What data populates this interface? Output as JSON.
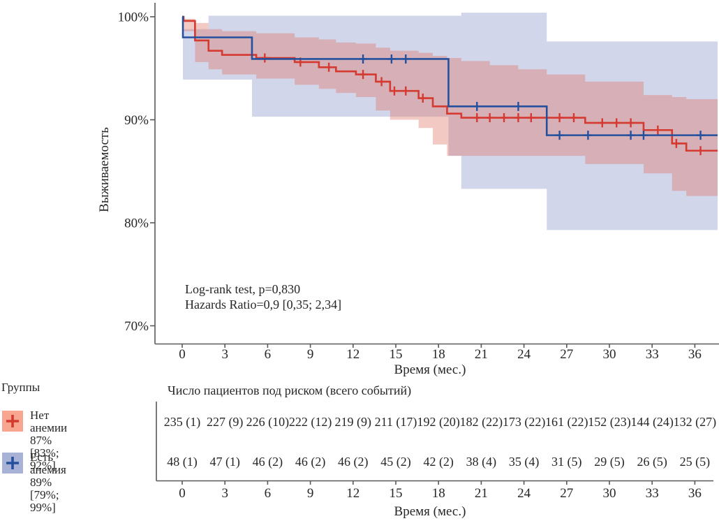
{
  "chart_data": {
    "type": "line",
    "subtype": "kaplan-meier-survival",
    "ylabel": "Выживаемость",
    "xlabel": "Время (мес.)",
    "x_ticks": [
      0,
      3,
      6,
      9,
      12,
      15,
      18,
      21,
      24,
      27,
      30,
      33,
      36
    ],
    "y_ticks": [
      {
        "value": 100,
        "label": "100%"
      },
      {
        "value": 90,
        "label": "90%"
      },
      {
        "value": 80,
        "label": "80%"
      },
      {
        "value": 70,
        "label": "70%"
      }
    ],
    "xlim": [
      0,
      37.6
    ],
    "ylim": [
      68,
      101
    ],
    "grid": false,
    "annotation_lines": [
      "Log-rank test, p=0,830",
      "Hazards Ratio=0,9 [0,35; 2,34]"
    ],
    "legend": {
      "title": "Группы",
      "position": "bottom-left"
    },
    "series": [
      {
        "name": "Нет анемии",
        "estimate_label": "87% [83%; 92%]",
        "line_color": "#d43a30",
        "band_fill": "rgba(224,112,98,0.38)",
        "swatch_color": "#f8a68f",
        "steps": [
          [
            0,
            100
          ],
          [
            0.1,
            99.6
          ],
          [
            0.9,
            97.7
          ],
          [
            1.85,
            96.7
          ],
          [
            2.8,
            96.3
          ],
          [
            5.2,
            96.0
          ],
          [
            7.9,
            95.6
          ],
          [
            9.6,
            95.1
          ],
          [
            10.8,
            94.7
          ],
          [
            12.2,
            94.4
          ],
          [
            13.6,
            93.7
          ],
          [
            14.6,
            92.8
          ],
          [
            16.6,
            92.1
          ],
          [
            17.6,
            91.3
          ],
          [
            18.6,
            90.6
          ],
          [
            19.6,
            90.2
          ],
          [
            28.3,
            89.7
          ],
          [
            32.4,
            89.0
          ],
          [
            34.4,
            87.7
          ],
          [
            35.4,
            87.0
          ]
        ],
        "censor_times": [
          5.8,
          8.3,
          10.3,
          12.7,
          14.0,
          14.9,
          15.7,
          16.9,
          20.7,
          21.6,
          22.6,
          23.6,
          24.5,
          26.5,
          27.5,
          29.5,
          30.5,
          31.5,
          33.4,
          34.7,
          36.4
        ],
        "band": [
          [
            0.1,
            99.8,
            98.6
          ],
          [
            0.9,
            99.4,
            95.6
          ],
          [
            1.85,
            98.8,
            94.9
          ],
          [
            2.8,
            98.6,
            94.4
          ],
          [
            5.2,
            98.4,
            94.0
          ],
          [
            7.9,
            98.0,
            93.4
          ],
          [
            9.6,
            97.8,
            93.0
          ],
          [
            10.8,
            97.5,
            92.6
          ],
          [
            12.2,
            97.4,
            92.2
          ],
          [
            13.6,
            97.0,
            90.9
          ],
          [
            14.6,
            96.7,
            90.0
          ],
          [
            16.6,
            96.5,
            89.2
          ],
          [
            17.6,
            96.2,
            87.6
          ],
          [
            18.6,
            96.0,
            86.5
          ],
          [
            19.6,
            95.7,
            86.5
          ],
          [
            21.6,
            95.3,
            86.5
          ],
          [
            23.6,
            94.9,
            86.5
          ],
          [
            25.6,
            94.4,
            86.5
          ],
          [
            28.3,
            93.7,
            85.7
          ],
          [
            32.4,
            92.4,
            84.8
          ],
          [
            34.4,
            92.2,
            83.1
          ],
          [
            35.4,
            92.0,
            82.6
          ]
        ]
      },
      {
        "name": "Есть анемия",
        "estimate_label": "89% [79%; 99%]",
        "line_color": "#24509e",
        "band_fill": "#d2d6eb",
        "swatch_color": "#a8b2d6",
        "steps": [
          [
            0,
            100
          ],
          [
            0.05,
            98.0
          ],
          [
            4.9,
            95.9
          ],
          [
            18.7,
            91.3
          ],
          [
            25.6,
            88.5
          ]
        ],
        "censor_times": [
          12.7,
          14.7,
          15.7,
          20.7,
          23.6,
          26.5,
          28.5,
          31.5,
          32.4,
          36.4
        ],
        "band": [
          [
            0.05,
            98.8,
            93.9
          ],
          [
            1.85,
            100.1,
            93.9
          ],
          [
            4.9,
            100.1,
            90.3
          ],
          [
            18.7,
            100.1,
            86.5
          ],
          [
            19.6,
            100.4,
            83.3
          ],
          [
            25.6,
            97.6,
            79.3
          ]
        ]
      }
    ],
    "risk_table": {
      "title": "Число пациентов под риском (всего событий)",
      "xlabel": "Время (мес.)",
      "x_ticks": [
        0,
        3,
        6,
        9,
        12,
        15,
        18,
        21,
        24,
        27,
        30,
        33,
        36
      ],
      "rows": [
        {
          "group": "Нет анемии",
          "values": [
            "235 (1)",
            "227 (9)",
            "226 (10)",
            "222 (12)",
            "219 (9)",
            "211 (17)",
            "192 (20)",
            "182 (22)",
            "173 (22)",
            "161 (22)",
            "152 (23)",
            "144 (24)",
            "132 (27)"
          ]
        },
        {
          "group": "Есть анемия",
          "values": [
            "48 (1)",
            "47 (1)",
            "46 (2)",
            "46 (2)",
            "46 (2)",
            "45 (2)",
            "42 (2)",
            "38 (4)",
            "35 (4)",
            "31 (5)",
            "29 (5)",
            "26 (5)",
            "25 (5)"
          ]
        }
      ]
    },
    "colors": {
      "axis": "#595959",
      "text": "#262626"
    }
  }
}
